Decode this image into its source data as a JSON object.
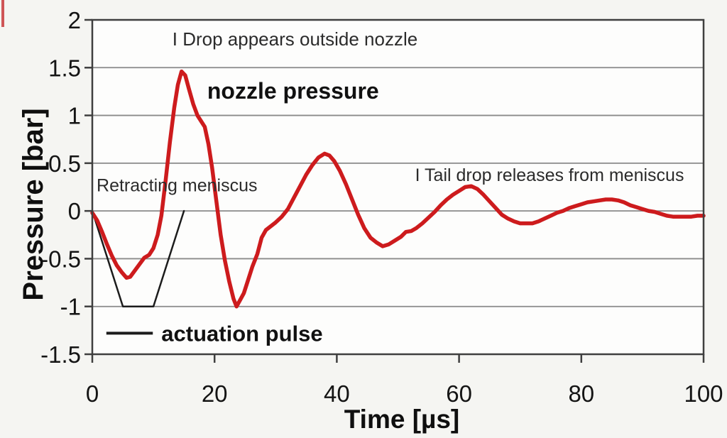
{
  "colors": {
    "nozzle_curve": "#cd1b1d",
    "pulse_curve": "#1c1c1c",
    "grid": "#8a8a8a",
    "border": "#3f3f3f",
    "tick_text": "#141414",
    "annotation_text": "#2b2b2b",
    "background": "#f5f5f2",
    "plot_background": "#fdfdfc"
  },
  "chart_data": {
    "type": "line",
    "title": "",
    "xlabel": "Time [µs]",
    "ylabel": "Pressure [bar]",
    "xlim": [
      0,
      100
    ],
    "ylim": [
      -1.5,
      2
    ],
    "x_ticks": [
      "0",
      "20",
      "40",
      "60",
      "80",
      "100"
    ],
    "y_ticks": [
      "2",
      "1.5",
      "1",
      "0.5",
      "0",
      "-0.5",
      "-1",
      "-1.5"
    ],
    "grid": "horizontal-only",
    "legend": {
      "label": "actuation pulse",
      "position": "inside-bottom-left",
      "line_from_t": 2.3,
      "line_to_t": 9.9,
      "p": -1.28,
      "text_t": 11.3,
      "font_size": 31
    },
    "series": [
      {
        "name": "nozzle pressure",
        "color": "#cd1b1d",
        "stroke_width": 5.5,
        "points": [
          [
            0,
            -0.02
          ],
          [
            0.8,
            -0.1
          ],
          [
            1.6,
            -0.22
          ],
          [
            2.4,
            -0.35
          ],
          [
            3.2,
            -0.47
          ],
          [
            4.0,
            -0.57
          ],
          [
            4.8,
            -0.64
          ],
          [
            5.6,
            -0.7
          ],
          [
            6.2,
            -0.69
          ],
          [
            7.0,
            -0.62
          ],
          [
            7.8,
            -0.55
          ],
          [
            8.5,
            -0.49
          ],
          [
            9.3,
            -0.46
          ],
          [
            10.0,
            -0.39
          ],
          [
            10.7,
            -0.25
          ],
          [
            11.3,
            -0.05
          ],
          [
            12.0,
            0.32
          ],
          [
            12.7,
            0.72
          ],
          [
            13.4,
            1.08
          ],
          [
            14.0,
            1.32
          ],
          [
            14.6,
            1.46
          ],
          [
            15.2,
            1.42
          ],
          [
            15.8,
            1.28
          ],
          [
            16.5,
            1.12
          ],
          [
            17.2,
            1.0
          ],
          [
            17.9,
            0.93
          ],
          [
            18.4,
            0.88
          ],
          [
            19.0,
            0.7
          ],
          [
            19.6,
            0.45
          ],
          [
            20.3,
            0.1
          ],
          [
            21.0,
            -0.25
          ],
          [
            21.7,
            -0.52
          ],
          [
            22.4,
            -0.74
          ],
          [
            23.1,
            -0.92
          ],
          [
            23.6,
            -1.0
          ],
          [
            24.2,
            -0.93
          ],
          [
            24.8,
            -0.86
          ],
          [
            25.5,
            -0.72
          ],
          [
            26.2,
            -0.58
          ],
          [
            27.0,
            -0.45
          ],
          [
            27.7,
            -0.28
          ],
          [
            28.4,
            -0.2
          ],
          [
            29.2,
            -0.16
          ],
          [
            30.0,
            -0.12
          ],
          [
            31.0,
            -0.06
          ],
          [
            32.0,
            0.02
          ],
          [
            33.0,
            0.14
          ],
          [
            34.0,
            0.26
          ],
          [
            35.0,
            0.38
          ],
          [
            36.0,
            0.48
          ],
          [
            37.0,
            0.56
          ],
          [
            38.0,
            0.6
          ],
          [
            38.8,
            0.58
          ],
          [
            39.6,
            0.52
          ],
          [
            40.5,
            0.42
          ],
          [
            41.5,
            0.28
          ],
          [
            42.5,
            0.12
          ],
          [
            43.5,
            -0.04
          ],
          [
            44.5,
            -0.18
          ],
          [
            45.5,
            -0.28
          ],
          [
            46.5,
            -0.33
          ],
          [
            47.5,
            -0.37
          ],
          [
            48.5,
            -0.35
          ],
          [
            49.5,
            -0.31
          ],
          [
            50.5,
            -0.27
          ],
          [
            51.3,
            -0.22
          ],
          [
            52.2,
            -0.21
          ],
          [
            53.0,
            -0.18
          ],
          [
            54.0,
            -0.13
          ],
          [
            55.0,
            -0.07
          ],
          [
            56.0,
            -0.01
          ],
          [
            57.0,
            0.06
          ],
          [
            58.0,
            0.12
          ],
          [
            59.0,
            0.17
          ],
          [
            60.0,
            0.21
          ],
          [
            61.0,
            0.25
          ],
          [
            62.0,
            0.26
          ],
          [
            63.0,
            0.23
          ],
          [
            64.0,
            0.17
          ],
          [
            65.0,
            0.1
          ],
          [
            66.0,
            0.03
          ],
          [
            67.0,
            -0.04
          ],
          [
            68.0,
            -0.08
          ],
          [
            69.0,
            -0.11
          ],
          [
            70.0,
            -0.13
          ],
          [
            71.0,
            -0.13
          ],
          [
            72.0,
            -0.13
          ],
          [
            73.0,
            -0.11
          ],
          [
            74.0,
            -0.08
          ],
          [
            75.0,
            -0.05
          ],
          [
            76.0,
            -0.02
          ],
          [
            77.0,
            0.0
          ],
          [
            78.0,
            0.03
          ],
          [
            79.0,
            0.05
          ],
          [
            80.0,
            0.07
          ],
          [
            81.0,
            0.09
          ],
          [
            82.0,
            0.1
          ],
          [
            83.0,
            0.11
          ],
          [
            84.0,
            0.12
          ],
          [
            85.0,
            0.12
          ],
          [
            86.0,
            0.11
          ],
          [
            87.0,
            0.09
          ],
          [
            88.0,
            0.06
          ],
          [
            89.0,
            0.04
          ],
          [
            90.0,
            0.02
          ],
          [
            91.0,
            0.0
          ],
          [
            92.0,
            -0.01
          ],
          [
            93.0,
            -0.03
          ],
          [
            94.0,
            -0.05
          ],
          [
            95.0,
            -0.06
          ],
          [
            96.0,
            -0.06
          ],
          [
            97.0,
            -0.06
          ],
          [
            98.0,
            -0.06
          ],
          [
            99.0,
            -0.05
          ],
          [
            100.0,
            -0.05
          ]
        ]
      },
      {
        "name": "actuation pulse",
        "color": "#1c1c1c",
        "stroke_width": 2.5,
        "points": [
          [
            0,
            0
          ],
          [
            5,
            -1
          ],
          [
            10,
            -1
          ],
          [
            15,
            0
          ]
        ]
      }
    ],
    "annotations": [
      {
        "id": "drop-appears-outside-nozzle",
        "text": "I Drop appears outside nozzle",
        "t": 13.1,
        "p": 1.8,
        "bold": false,
        "size": 26
      },
      {
        "id": "nozzle-pressure-label",
        "text": "nozzle pressure",
        "t": 18.8,
        "p": 1.26,
        "bold": true,
        "size": 32
      },
      {
        "id": "retracting-meniscus",
        "text": "Retracting meniscus",
        "t": 0.7,
        "p": 0.27,
        "bold": false,
        "size": 25
      },
      {
        "id": "tail-drop-releases",
        "text": "I Tail drop releases from meniscus",
        "t": 52.8,
        "p": 0.38,
        "bold": false,
        "size": 25
      }
    ]
  }
}
